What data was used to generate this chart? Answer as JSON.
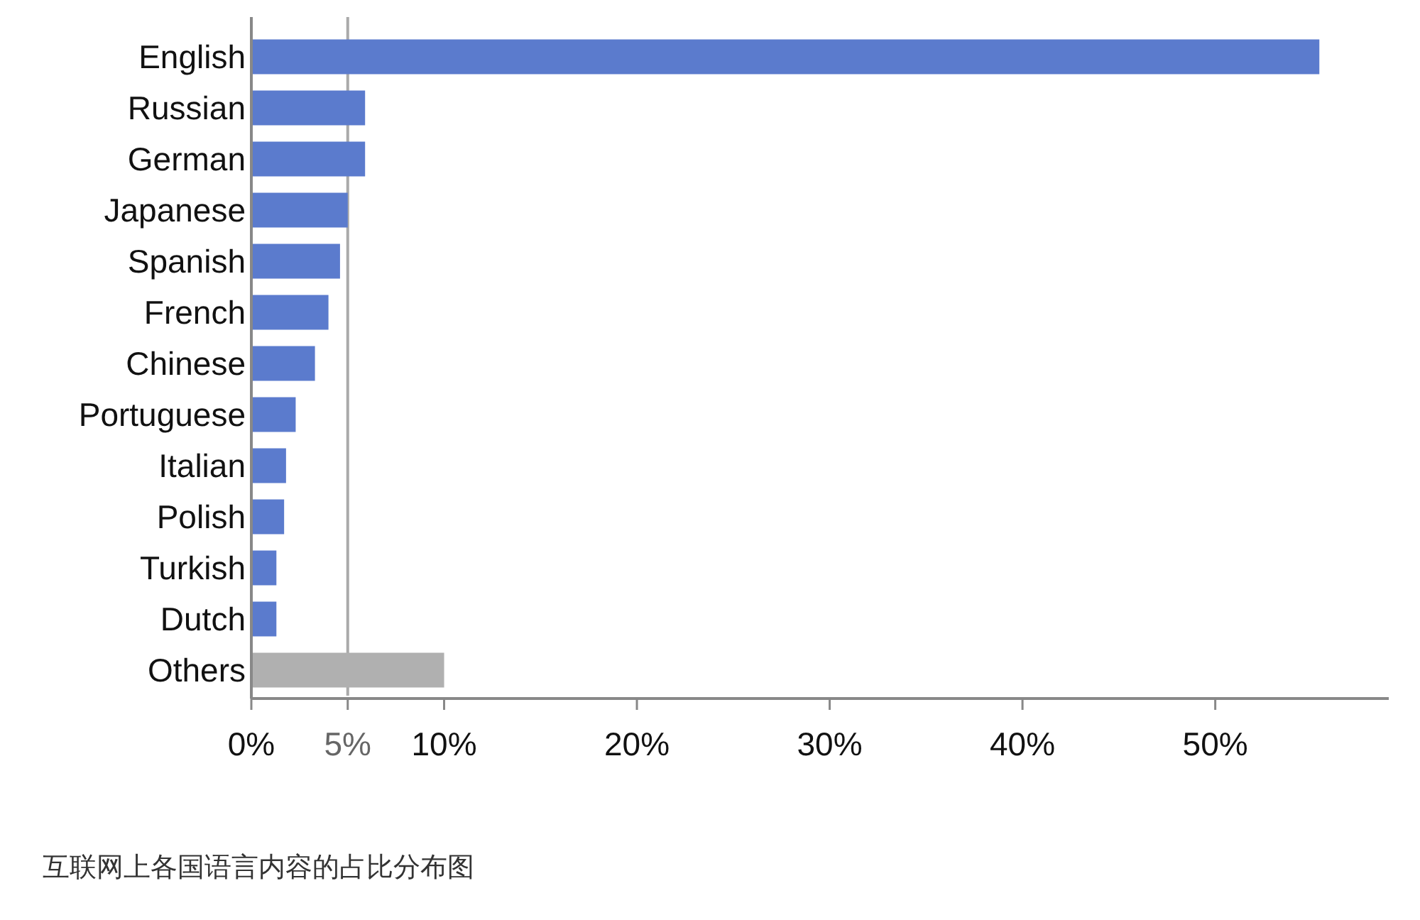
{
  "chart_data": {
    "type": "bar",
    "orientation": "horizontal",
    "categories": [
      "English",
      "Russian",
      "German",
      "Japanese",
      "Spanish",
      "French",
      "Chinese",
      "Portuguese",
      "Italian",
      "Polish",
      "Turkish",
      "Dutch",
      "Others"
    ],
    "values": [
      55.4,
      5.9,
      5.9,
      5.0,
      4.6,
      4.0,
      3.3,
      2.3,
      1.8,
      1.7,
      1.3,
      1.3,
      10.0
    ],
    "colors": [
      "#5b7bcd",
      "#5b7bcd",
      "#5b7bcd",
      "#5b7bcd",
      "#5b7bcd",
      "#5b7bcd",
      "#5b7bcd",
      "#5b7bcd",
      "#5b7bcd",
      "#5b7bcd",
      "#5b7bcd",
      "#5b7bcd",
      "#b0b0b0"
    ],
    "xlim": [
      0,
      59
    ],
    "xticks": [
      {
        "value": 0,
        "label": "0%"
      },
      {
        "value": 5,
        "label": "5%"
      },
      {
        "value": 10,
        "label": "10%"
      },
      {
        "value": 20,
        "label": "20%"
      },
      {
        "value": 30,
        "label": "30%"
      },
      {
        "value": 40,
        "label": "40%"
      },
      {
        "value": 50,
        "label": "50%"
      }
    ],
    "ref_lines": [
      {
        "axis": "x",
        "value": 5,
        "color": "#aaaaaa"
      }
    ],
    "grid": false,
    "annotations": [
      "互联网上各国语言内容的占比分布图"
    ]
  }
}
